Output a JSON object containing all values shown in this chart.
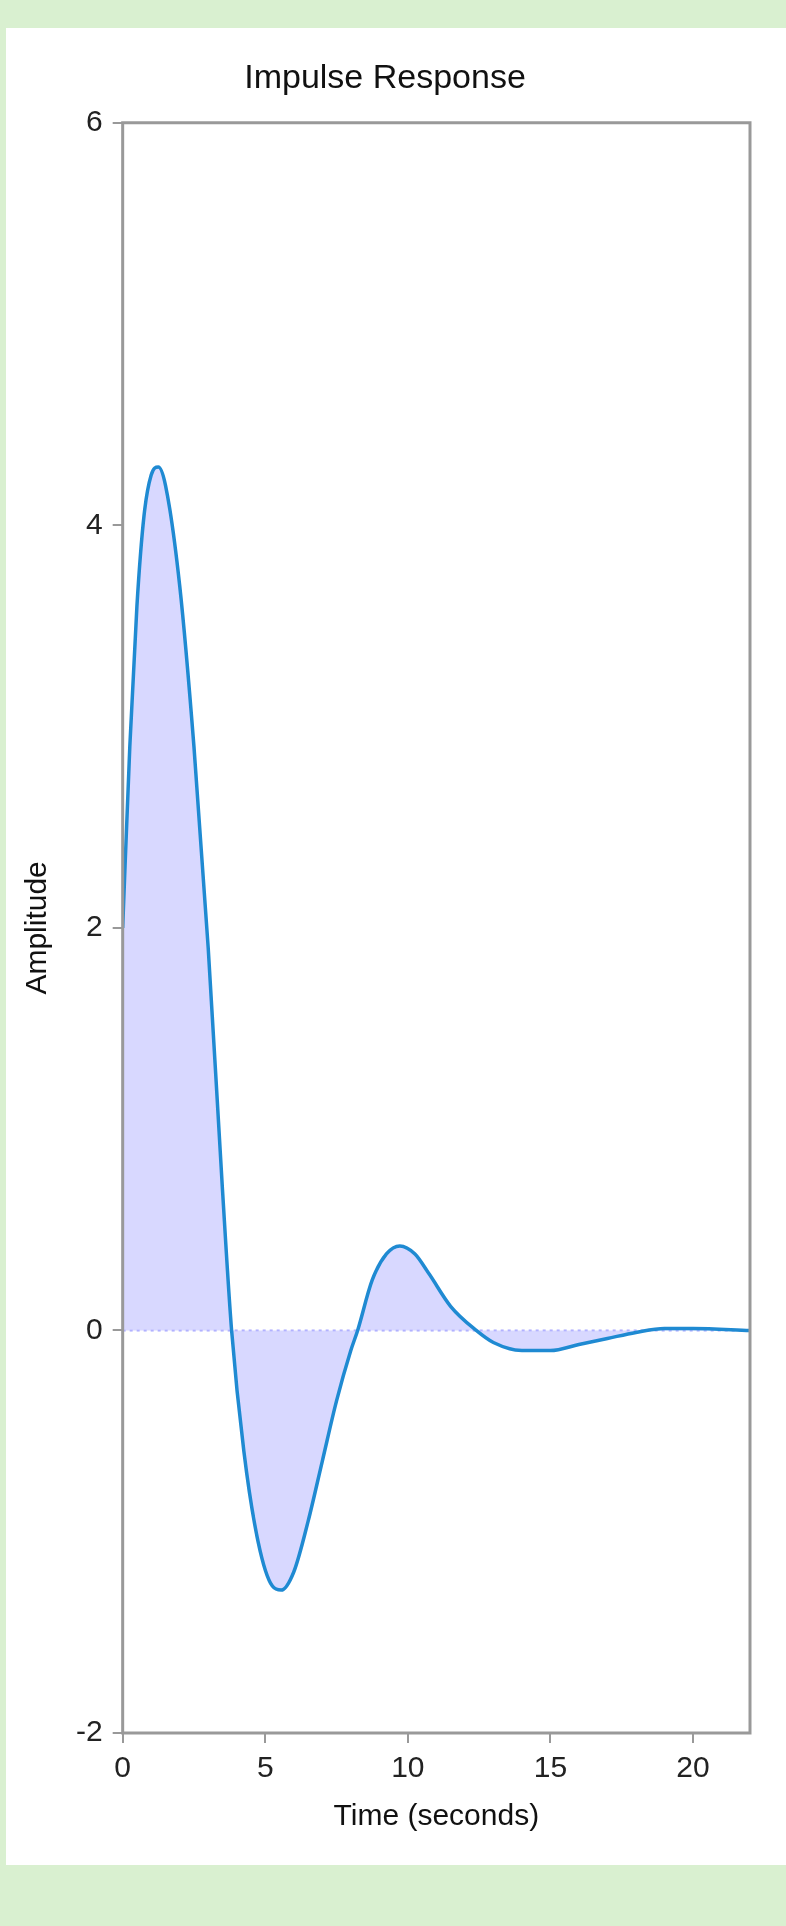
{
  "chart_data": {
    "type": "area",
    "title": "Impulse Response",
    "xlabel": "Time (seconds)",
    "ylabel": "Amplitude",
    "x": [
      0,
      0.25,
      0.5,
      0.75,
      1,
      1.25,
      1.5,
      2,
      2.5,
      3,
      3.5,
      3.82,
      4.25,
      4.75,
      5.25,
      5.56,
      6,
      6.5,
      7,
      7.5,
      8,
      8.24,
      8.75,
      9.25,
      9.72,
      10.25,
      10.75,
      11.5,
      12.4,
      13,
      14,
      15,
      16,
      17,
      18,
      19,
      20,
      22
    ],
    "series": [
      {
        "color": "#1f8ad2",
        "values": [
          2,
          2.9,
          3.6,
          4.05,
          4.25,
          4.29,
          4.2,
          3.7,
          2.9,
          1.9,
          0.7,
          0,
          -0.6,
          -1.05,
          -1.27,
          -1.29,
          -1.2,
          -0.95,
          -0.65,
          -0.35,
          -0.1,
          0,
          0.25,
          0.38,
          0.42,
          0.38,
          0.28,
          0.12,
          0,
          -0.06,
          -0.1,
          -0.1,
          -0.07,
          -0.04,
          -0.01,
          0.01,
          0.01,
          0
        ]
      }
    ],
    "xlim": [
      0,
      22
    ],
    "xticks": [
      0,
      5,
      10,
      15,
      20
    ],
    "ylim": [
      -2,
      6
    ],
    "yticks": [
      -2,
      0,
      2,
      4,
      6
    ],
    "grid": false,
    "ref_lines": [
      {
        "axis": "y",
        "value": 0,
        "color": "#a8a8ff",
        "line_style": "dotted"
      }
    ]
  }
}
